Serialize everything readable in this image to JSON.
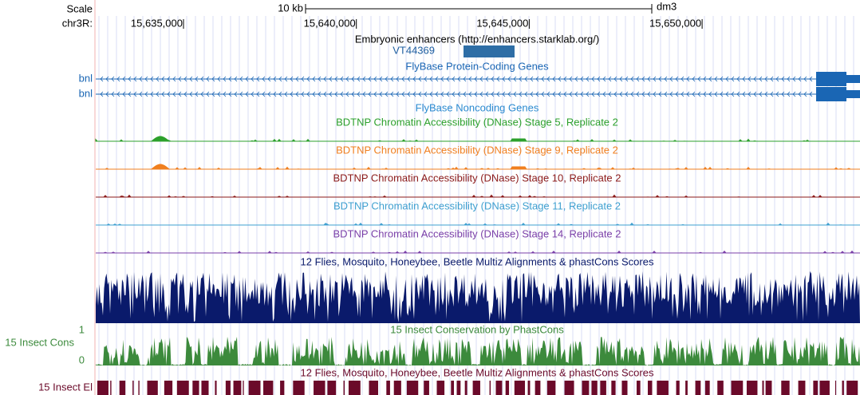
{
  "ruler": {
    "scale_label": "Scale",
    "chrom_label": "chr3R:",
    "scale_bar": "10 kb",
    "assembly": "dm3",
    "ticks": [
      "15,635,000",
      "15,640,000",
      "15,645,000",
      "15,650,000"
    ]
  },
  "tracks": [
    {
      "title": "Embryonic enhancers (http://enhancers.starklab.org/)",
      "feature": "VT44369",
      "color": "#1f5fa0"
    },
    {
      "title": "FlyBase Protein-Coding Genes",
      "labels": [
        "bnl",
        "bnl"
      ],
      "color": "#1a66b4"
    },
    {
      "title": "FlyBase Noncoding Genes",
      "color": "#2a8ad0"
    },
    {
      "title": "BDTNP Chromatin Accessibility (DNase) Stage 5, Replicate 2",
      "color": "#2ca02c"
    },
    {
      "title": "BDTNP Chromatin Accessibility (DNase) Stage 9, Replicate 2",
      "color": "#f07f1f"
    },
    {
      "title": "BDTNP Chromatin Accessibility (DNase) Stage 10, Replicate 2",
      "color": "#8b1a1a"
    },
    {
      "title": "BDTNP Chromatin Accessibility (DNase) Stage 11, Replicate 2",
      "color": "#3fa0d0"
    },
    {
      "title": "BDTNP Chromatin Accessibility (DNase) Stage 14, Replicate 2",
      "color": "#7a3fa8"
    },
    {
      "title": "12 Flies, Mosquito, Honeybee, Beetle Multiz Alignments & phastCons Scores",
      "color": "#0a1a6b"
    },
    {
      "title": "15 Insect Conservation by PhastCons",
      "side_label": "15 Insect Cons",
      "ymax": 1,
      "ymin": 0,
      "color": "#3c8a3c"
    },
    {
      "title": "12 Flies, Mosquito, Honeybee, Beetle Multiz Alignments & phastCons Scores",
      "side_label": "15 Insect El",
      "color": "#6b0a2a"
    }
  ]
}
